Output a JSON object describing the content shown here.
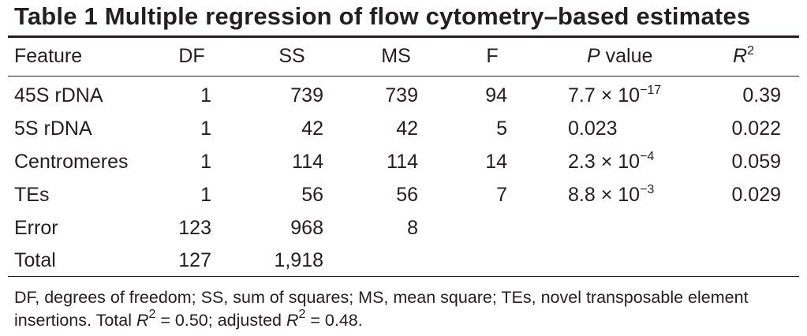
{
  "title": "Table 1  Multiple regression of flow cytometry–based estimates",
  "headers": {
    "feature": "Feature",
    "df": "DF",
    "ss": "SS",
    "ms": "MS",
    "f": "F",
    "p_italic": "P",
    "p_rest": " value",
    "r2_base": "R",
    "r2_exp": "2"
  },
  "rows": [
    {
      "feature": "45S rDNA",
      "df": "1",
      "ss": "739",
      "ms": "739",
      "f": "94",
      "p_base": "7.7 × 10",
      "p_exp": "−17",
      "r2": "0.39"
    },
    {
      "feature": "5S rDNA",
      "df": "1",
      "ss": "42",
      "ms": "42",
      "f": "5",
      "p_base": "0.023",
      "p_exp": "",
      "r2": "0.022"
    },
    {
      "feature": "Centromeres",
      "df": "1",
      "ss": "114",
      "ms": "114",
      "f": "14",
      "p_base": "2.3 × 10",
      "p_exp": "−4",
      "r2": "0.059"
    },
    {
      "feature": "TEs",
      "df": "1",
      "ss": "56",
      "ms": "56",
      "f": "7",
      "p_base": "8.8 × 10",
      "p_exp": "−3",
      "r2": "0.029"
    },
    {
      "feature": "Error",
      "df": "123",
      "ss": "968",
      "ms": "8",
      "f": "",
      "p_base": "",
      "p_exp": "",
      "r2": ""
    },
    {
      "feature": "Total",
      "df": "127",
      "ss": "1,918",
      "ms": "",
      "f": "",
      "p_base": "",
      "p_exp": "",
      "r2": ""
    }
  ],
  "footnote": {
    "text1": "DF, degrees of freedom; SS, sum of squares; MS, mean square; TEs, novel transposable element insertions. Total ",
    "r": "R",
    "exp": "2",
    "text2": " = 0.50; adjusted ",
    "r_b": "R",
    "exp_b": "2",
    "text3": " = 0.48."
  }
}
